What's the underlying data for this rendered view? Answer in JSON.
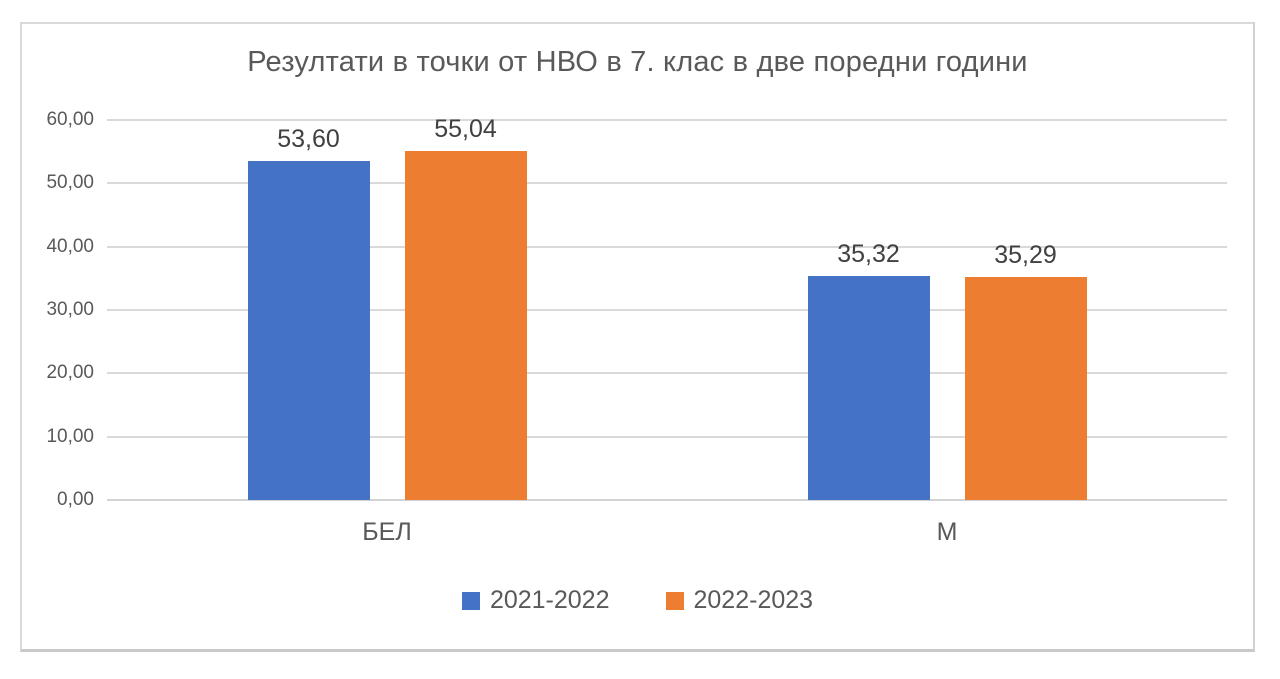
{
  "chart_data": {
    "type": "bar",
    "title": "Резултати в точки от НВО в 7. клас в две поредни години",
    "categories": [
      "БЕЛ",
      "М"
    ],
    "series": [
      {
        "name": "2021-2022",
        "color": "#4472C4",
        "values": [
          53.6,
          35.32
        ],
        "value_labels": [
          "53,60",
          "35,32"
        ]
      },
      {
        "name": "2022-2023",
        "color": "#ED7D31",
        "values": [
          55.04,
          35.29
        ],
        "value_labels": [
          "55,04",
          "35,29"
        ]
      }
    ],
    "xlabel": "",
    "ylabel": "",
    "ylim": [
      0,
      60
    ],
    "ytick_step": 10,
    "yticks": [
      {
        "v": 0,
        "label": "0,00"
      },
      {
        "v": 10,
        "label": "10,00"
      },
      {
        "v": 20,
        "label": "20,00"
      },
      {
        "v": 30,
        "label": "30,00"
      },
      {
        "v": 40,
        "label": "40,00"
      },
      {
        "v": 50,
        "label": "50,00"
      },
      {
        "v": 60,
        "label": "60,00"
      }
    ],
    "grid": true,
    "legend_position": "bottom"
  },
  "styles": {
    "series_blue": "#4472C4",
    "series_orange": "#ED7D31",
    "grid_color": "#d9d9d9",
    "axis_text_color": "#595959",
    "data_label_color": "#404040",
    "frame_border_color": "#d9d9d9",
    "background": "#ffffff"
  }
}
